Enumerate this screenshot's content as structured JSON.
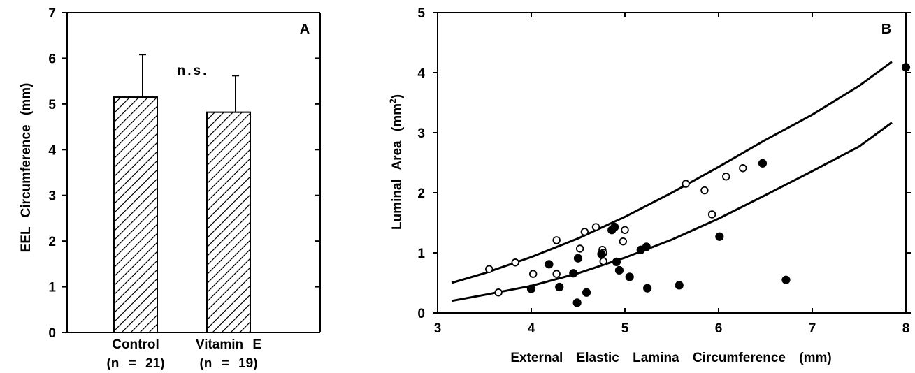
{
  "chart_data": [
    {
      "type": "bar",
      "panel_label": "A",
      "categories": [
        "Control",
        "Vitamin E"
      ],
      "category_n": [
        "(n = 21)",
        "(n = 19)"
      ],
      "values": [
        5.15,
        4.82
      ],
      "error_upper": [
        0.93,
        0.8
      ],
      "ylabel": "EEL Circumference (mm)",
      "ylim": [
        0,
        7
      ],
      "yticks": [
        0,
        1,
        2,
        3,
        4,
        5,
        6,
        7
      ],
      "annotation": "n.s.",
      "grid": false,
      "bar_pattern": "diagonal-hatch"
    },
    {
      "type": "scatter",
      "panel_label": "B",
      "xlabel": "External Elastic Lamina Circumference (mm)",
      "ylabel_main": "Luminal Area (mm",
      "ylabel_sup": "2",
      "ylabel_end": ")",
      "xlim": [
        3,
        8
      ],
      "ylim": [
        0,
        5
      ],
      "xticks": [
        3,
        4,
        5,
        6,
        7,
        8
      ],
      "yticks": [
        0,
        1,
        2,
        3,
        4,
        5
      ],
      "grid": false,
      "series": [
        {
          "marker": "open-circle",
          "points": [
            [
              3.55,
              0.73
            ],
            [
              3.65,
              0.34
            ],
            [
              3.83,
              0.84
            ],
            [
              4.02,
              0.65
            ],
            [
              4.27,
              1.21
            ],
            [
              4.27,
              0.65
            ],
            [
              4.52,
              1.07
            ],
            [
              4.57,
              1.35
            ],
            [
              4.69,
              1.43
            ],
            [
              4.76,
              1.05
            ],
            [
              4.77,
              1.0
            ],
            [
              4.77,
              0.86
            ],
            [
              4.98,
              1.19
            ],
            [
              5.0,
              1.38
            ],
            [
              5.65,
              2.15
            ],
            [
              5.85,
              2.04
            ],
            [
              5.93,
              1.64
            ],
            [
              6.08,
              2.27
            ],
            [
              6.26,
              2.41
            ]
          ]
        },
        {
          "marker": "filled-circle",
          "points": [
            [
              4.0,
              0.4
            ],
            [
              4.19,
              0.81
            ],
            [
              4.3,
              0.43
            ],
            [
              4.45,
              0.66
            ],
            [
              4.49,
              0.17
            ],
            [
              4.5,
              0.91
            ],
            [
              4.59,
              0.34
            ],
            [
              4.75,
              0.98
            ],
            [
              4.86,
              1.38
            ],
            [
              4.89,
              1.43
            ],
            [
              4.91,
              0.85
            ],
            [
              4.94,
              0.71
            ],
            [
              5.05,
              0.6
            ],
            [
              5.17,
              1.05
            ],
            [
              5.23,
              1.1
            ],
            [
              5.24,
              0.41
            ],
            [
              5.58,
              0.46
            ],
            [
              6.01,
              1.27
            ],
            [
              6.47,
              2.49
            ],
            [
              6.72,
              0.55
            ],
            [
              8.0,
              4.09
            ]
          ]
        }
      ],
      "curves": [
        [
          [
            3.15,
            0.5
          ],
          [
            3.5,
            0.66
          ],
          [
            4.0,
            0.93
          ],
          [
            4.5,
            1.24
          ],
          [
            5.0,
            1.6
          ],
          [
            5.5,
            2.0
          ],
          [
            6.0,
            2.43
          ],
          [
            6.5,
            2.88
          ],
          [
            7.0,
            3.3
          ],
          [
            7.5,
            3.78
          ],
          [
            7.85,
            4.18
          ]
        ],
        [
          [
            3.15,
            0.2
          ],
          [
            3.5,
            0.3
          ],
          [
            4.0,
            0.45
          ],
          [
            4.5,
            0.66
          ],
          [
            5.0,
            0.92
          ],
          [
            5.5,
            1.22
          ],
          [
            6.0,
            1.57
          ],
          [
            6.5,
            1.96
          ],
          [
            7.0,
            2.36
          ],
          [
            7.5,
            2.77
          ],
          [
            7.85,
            3.17
          ]
        ]
      ]
    }
  ]
}
